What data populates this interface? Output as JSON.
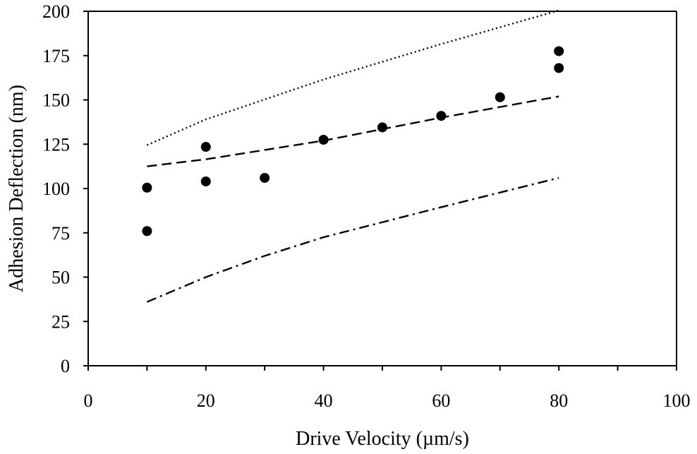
{
  "chart_data": {
    "type": "scatter",
    "title": "",
    "xlabel": "Drive Velocity (µm/s)",
    "ylabel": "Adhesion Deflection (nm)",
    "xlim": [
      0,
      100
    ],
    "ylim": [
      0,
      200
    ],
    "x_ticks": [
      0,
      20,
      40,
      60,
      80,
      100
    ],
    "x_minor_ticks": [
      10,
      30,
      50,
      70,
      90
    ],
    "y_ticks": [
      0,
      25,
      50,
      75,
      100,
      125,
      150,
      175,
      200
    ],
    "x_tick_labels": [
      "0",
      "20",
      "40",
      "60",
      "80",
      "100"
    ],
    "y_tick_labels": [
      "0",
      "25",
      "50",
      "75",
      "100",
      "125",
      "150",
      "175",
      "200"
    ],
    "grid": false,
    "legend": "none",
    "series": [
      {
        "name": "measured",
        "kind": "points",
        "marker": "filled-circle",
        "color": "#000000",
        "x": [
          10,
          10,
          20,
          20,
          30,
          40,
          50,
          60,
          70,
          80,
          80
        ],
        "y": [
          76,
          100.5,
          104,
          123.5,
          106,
          127.5,
          134.5,
          141,
          151.5,
          168,
          177.5
        ]
      },
      {
        "name": "upper-model",
        "kind": "line",
        "style": "dotted",
        "color": "#000000",
        "x": [
          10,
          20,
          40,
          60,
          80
        ],
        "y": [
          124.5,
          139,
          161.5,
          181.5,
          200.5
        ]
      },
      {
        "name": "middle-model",
        "kind": "line",
        "style": "dashed",
        "color": "#000000",
        "x": [
          10,
          20,
          40,
          60,
          80
        ],
        "y": [
          112.5,
          116.5,
          127,
          140,
          152
        ]
      },
      {
        "name": "lower-model",
        "kind": "line",
        "style": "dash-dot",
        "color": "#000000",
        "x": [
          10,
          20,
          30,
          40,
          60,
          80
        ],
        "y": [
          36,
          50,
          62,
          72.5,
          89.5,
          106
        ]
      }
    ]
  }
}
